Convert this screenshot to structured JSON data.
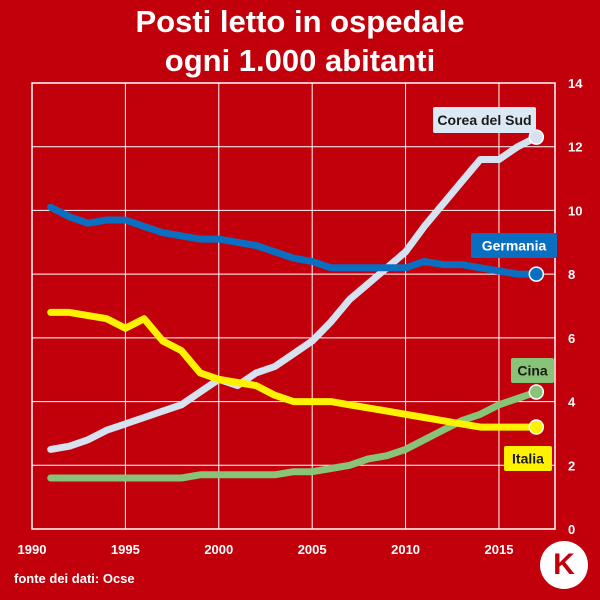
{
  "title_line1": "Posti letto in ospedale",
  "title_line2": "ogni 1.000 abitanti",
  "footer": "fonte dei dati: Ocse",
  "logo_text": "K",
  "colors": {
    "background": "#c1000b",
    "grid": "#ffffff"
  },
  "chart_data": {
    "type": "line",
    "x": [
      1991,
      1992,
      1993,
      1994,
      1995,
      1996,
      1997,
      1998,
      1999,
      2000,
      2001,
      2002,
      2003,
      2004,
      2005,
      2006,
      2007,
      2008,
      2009,
      2010,
      2011,
      2012,
      2013,
      2014,
      2015,
      2016,
      2017
    ],
    "xticks": [
      1990,
      1995,
      2000,
      2005,
      2010,
      2015
    ],
    "yticks": [
      0,
      2,
      4,
      6,
      8,
      10,
      12,
      14
    ],
    "xlim": [
      1990,
      2018
    ],
    "ylim": [
      0,
      14
    ],
    "grid": true,
    "series": [
      {
        "name": "Corea del Sud",
        "color": "#d6e2ef",
        "label_bg": "#dce8f3",
        "label_color": "#1a1a1a",
        "values": [
          2.5,
          2.6,
          2.8,
          3.1,
          3.3,
          3.5,
          3.7,
          3.9,
          4.3,
          4.7,
          4.5,
          4.9,
          5.1,
          5.5,
          5.9,
          6.5,
          7.2,
          7.7,
          8.2,
          8.7,
          9.5,
          10.2,
          10.9,
          11.6,
          11.6,
          12.0,
          12.3
        ]
      },
      {
        "name": "Germania",
        "color": "#0a6fc0",
        "label_bg": "#0a6fc0",
        "label_color": "#ffffff",
        "values": [
          10.1,
          9.8,
          9.6,
          9.7,
          9.7,
          9.5,
          9.3,
          9.2,
          9.1,
          9.1,
          9.0,
          8.9,
          8.7,
          8.5,
          8.4,
          8.2,
          8.2,
          8.2,
          8.2,
          8.2,
          8.4,
          8.3,
          8.3,
          8.2,
          8.1,
          8.0,
          8.0
        ]
      },
      {
        "name": "Cina",
        "color": "#88c378",
        "label_bg": "#88c378",
        "label_color": "#1a1a1a",
        "values": [
          1.6,
          1.6,
          1.6,
          1.6,
          1.6,
          1.6,
          1.6,
          1.6,
          1.7,
          1.7,
          1.7,
          1.7,
          1.7,
          1.8,
          1.8,
          1.9,
          2.0,
          2.2,
          2.3,
          2.5,
          2.8,
          3.1,
          3.4,
          3.6,
          3.9,
          4.1,
          4.3
        ]
      },
      {
        "name": "Italia",
        "color": "#fff200",
        "label_bg": "#fff200",
        "label_color": "#1a1a1a",
        "values": [
          6.8,
          6.8,
          6.7,
          6.6,
          6.3,
          6.6,
          5.9,
          5.6,
          4.9,
          4.7,
          4.6,
          4.5,
          4.2,
          4.0,
          4.0,
          4.0,
          3.9,
          3.8,
          3.7,
          3.6,
          3.5,
          3.4,
          3.3,
          3.2,
          3.2,
          3.2,
          3.2
        ]
      }
    ]
  }
}
